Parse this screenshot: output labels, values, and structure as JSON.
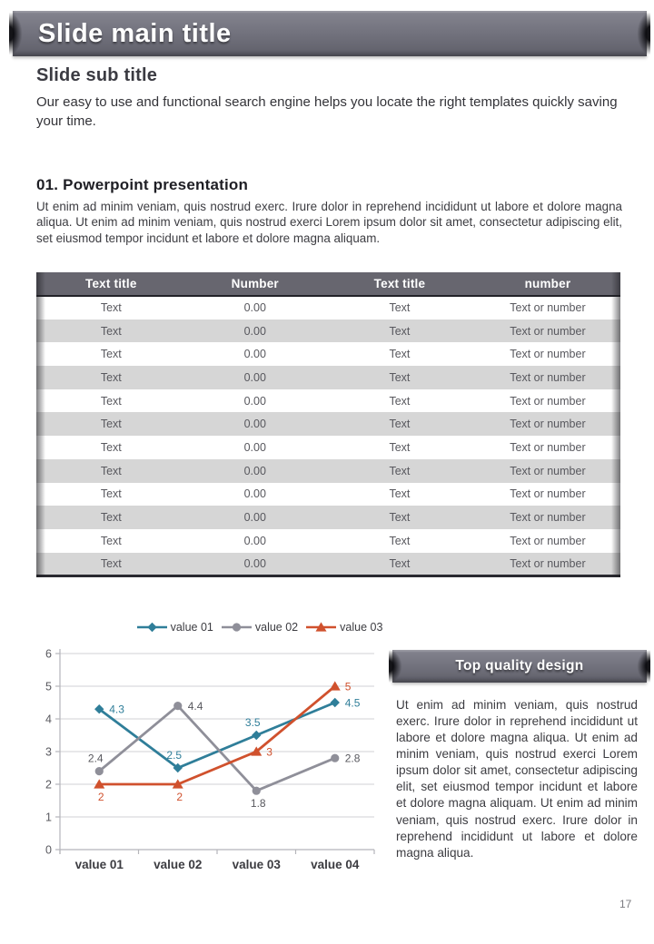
{
  "header": {
    "title": "Slide main title"
  },
  "intro": {
    "subtitle": "Slide sub title",
    "body": "Our easy to use and functional search engine helps you locate the right templates quickly saving your time."
  },
  "section": {
    "heading": "01. Powerpoint presentation",
    "body": "Ut enim ad minim veniam, quis nostrud exerc. Irure dolor in reprehend incididunt ut labore et dolore magna aliqua. Ut enim ad minim veniam, quis nostrud exerci  Lorem ipsum dolor sit amet, consectetur adipiscing elit, set eiusmod tempor incidunt et labore et dolore magna aliquam."
  },
  "table": {
    "headers": [
      "Text title",
      "Number",
      "Text title",
      "number"
    ],
    "col_widths_pct": [
      25.6,
      23.7,
      25.8,
      24.9
    ],
    "rows": [
      [
        "Text",
        "0.00",
        "Text",
        "Text or number"
      ],
      [
        "Text",
        "0.00",
        "Text",
        "Text or number"
      ],
      [
        "Text",
        "0.00",
        "Text",
        "Text or number"
      ],
      [
        "Text",
        "0.00",
        "Text",
        "Text or number"
      ],
      [
        "Text",
        "0.00",
        "Text",
        "Text or number"
      ],
      [
        "Text",
        "0.00",
        "Text",
        "Text or number"
      ],
      [
        "Text",
        "0.00",
        "Text",
        "Text or number"
      ],
      [
        "Text",
        "0.00",
        "Text",
        "Text or number"
      ],
      [
        "Text",
        "0.00",
        "Text",
        "Text or number"
      ],
      [
        "Text",
        "0.00",
        "Text",
        "Text or number"
      ],
      [
        "Text",
        "0.00",
        "Text",
        "Text or number"
      ],
      [
        "Text",
        "0.00",
        "Text",
        "Text or number"
      ]
    ]
  },
  "chart_data": {
    "type": "line",
    "title": "",
    "categories": [
      "value 01",
      "value 02",
      "value 03",
      "value 04"
    ],
    "series": [
      {
        "name": "value 01",
        "color": "#2f7e99",
        "label_color": "#2f7e99",
        "marker": "diamond",
        "values": [
          4.3,
          2.5,
          3.5,
          4.5
        ],
        "label_positions": [
          "right",
          "above",
          "above",
          "right"
        ]
      },
      {
        "name": "value 02",
        "color": "#8f8f99",
        "label_color": "#58585e",
        "marker": "circle",
        "values": [
          2.4,
          4.4,
          1.8,
          2.8
        ],
        "label_positions": [
          "above",
          "right",
          "below",
          "right"
        ]
      },
      {
        "name": "value 03",
        "color": "#d0512d",
        "label_color": "#d0512d",
        "marker": "triangle",
        "values": [
          2,
          2,
          3,
          5
        ],
        "label_positions": [
          "below",
          "below",
          "right",
          "right"
        ]
      }
    ],
    "ylim": [
      0,
      6
    ],
    "ytick_step": 1,
    "grid": true,
    "legend_position": "top"
  },
  "sidebox": {
    "title": "Top quality design",
    "body": "Ut enim ad minim veniam, quis nostrud exerc. Irure dolor in reprehend incididunt ut labore et dolore magna aliqua. Ut enim ad minim veniam, quis nostrud exerci Lorem ipsum dolor sit amet, consectetur adipiscing elit, set eiusmod tempor incidunt et labore et dolore magna aliquam. Ut enim ad minim veniam, quis nostrud exerc. Irure dolor in reprehend incididunt ut labore et dolore magna aliqua."
  },
  "page": {
    "number": "17"
  },
  "colors": {
    "ribbon_gray": "#70707b",
    "table_header": "#67666f",
    "row_alt": "#d6d6d6",
    "grid_line": "#d9d9de",
    "axis_line": "#b5b5ba",
    "text_dark": "#3c3c41",
    "text_muted": "#58585e"
  }
}
